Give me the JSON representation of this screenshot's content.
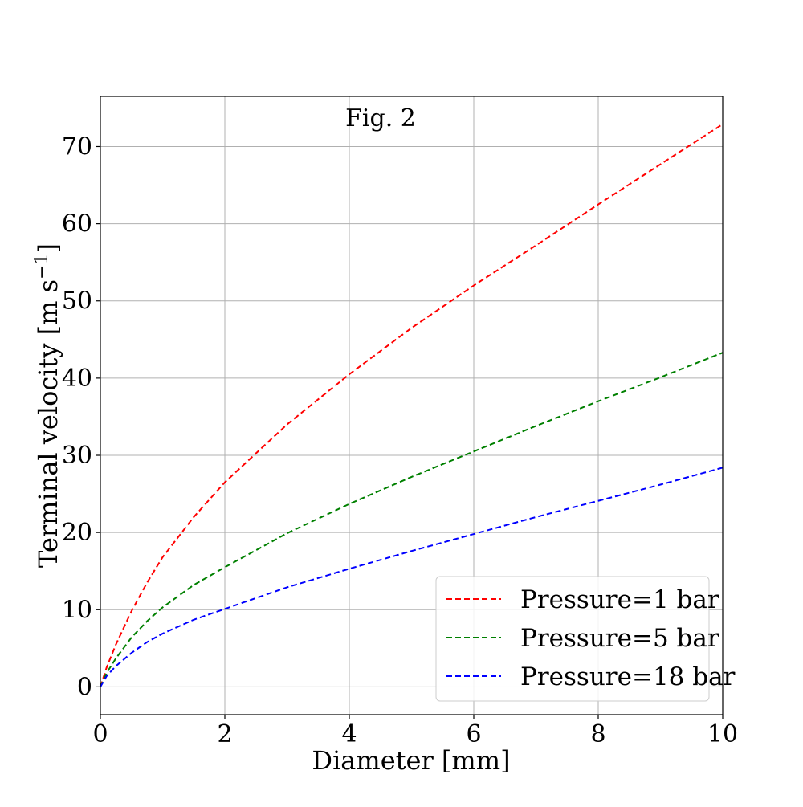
{
  "chart_data": {
    "type": "line",
    "title": "Fig. 2",
    "xlabel": "Diameter [mm]",
    "ylabel": "Terminal velocity [m s",
    "ylabel_superscript": "−1",
    "ylabel_close": "]",
    "xlim": [
      0,
      10
    ],
    "ylim": [
      -3.6,
      76.5
    ],
    "xticks": [
      0,
      2,
      4,
      6,
      8,
      10
    ],
    "yticks": [
      0,
      10,
      20,
      30,
      40,
      50,
      60,
      70
    ],
    "grid": true,
    "legend_position": "lower-right",
    "x": [
      0,
      0.1,
      0.25,
      0.5,
      0.75,
      1,
      1.5,
      2,
      3,
      4,
      5,
      6,
      7,
      8,
      9,
      10
    ],
    "series": [
      {
        "name": "Pressure=1 bar",
        "color": "#ff0000",
        "style": "dashed",
        "values": [
          0,
          2.5,
          5.5,
          9.8,
          13.5,
          16.8,
          22.0,
          26.5,
          34.0,
          40.5,
          46.5,
          52.0,
          57.2,
          62.5,
          67.7,
          72.9
        ]
      },
      {
        "name": "Pressure=5 bar",
        "color": "#008000",
        "style": "dashed",
        "values": [
          0,
          1.8,
          3.7,
          6.4,
          8.5,
          10.3,
          13.2,
          15.5,
          19.9,
          23.7,
          27.2,
          30.5,
          33.8,
          37.0,
          40.1,
          43.3
        ]
      },
      {
        "name": "Pressure=18 bar",
        "color": "#0000ff",
        "style": "dashed",
        "values": [
          0,
          1.4,
          2.7,
          4.4,
          5.8,
          6.9,
          8.7,
          10.1,
          12.9,
          15.3,
          17.6,
          19.8,
          22.0,
          24.1,
          26.2,
          28.4
        ]
      }
    ]
  }
}
